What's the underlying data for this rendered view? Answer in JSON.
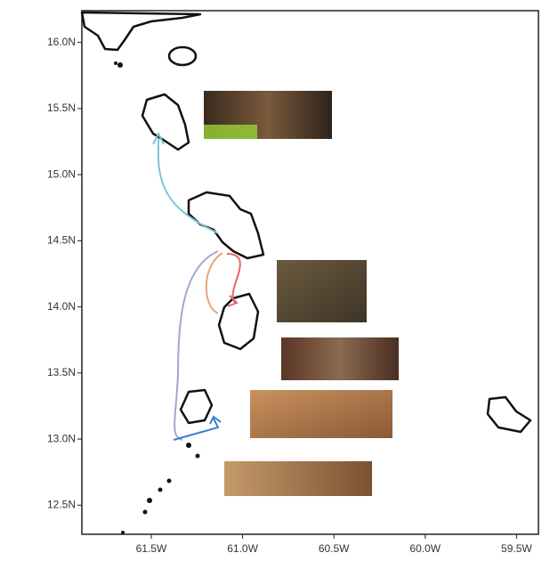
{
  "map": {
    "xlim": [
      -61.88,
      -59.38
    ],
    "ylim": [
      12.28,
      16.24
    ],
    "xticks": [
      {
        "value": -61.5,
        "label": "61.5W"
      },
      {
        "value": -61.0,
        "label": "61.0W"
      },
      {
        "value": -60.5,
        "label": "60.5W"
      },
      {
        "value": -60.0,
        "label": "60.0W"
      },
      {
        "value": -59.5,
        "label": "59.5W"
      }
    ],
    "yticks": [
      {
        "value": 12.5,
        "label": "12.5N"
      },
      {
        "value": 13.0,
        "label": "13.0N"
      },
      {
        "value": 13.5,
        "label": "13.5N"
      },
      {
        "value": 14.0,
        "label": "14.0N"
      },
      {
        "value": 14.5,
        "label": "14.5N"
      },
      {
        "value": 15.0,
        "label": "15.0N"
      },
      {
        "value": 15.5,
        "label": "15.5N"
      },
      {
        "value": 16.0,
        "label": "16.0N"
      }
    ]
  }
}
